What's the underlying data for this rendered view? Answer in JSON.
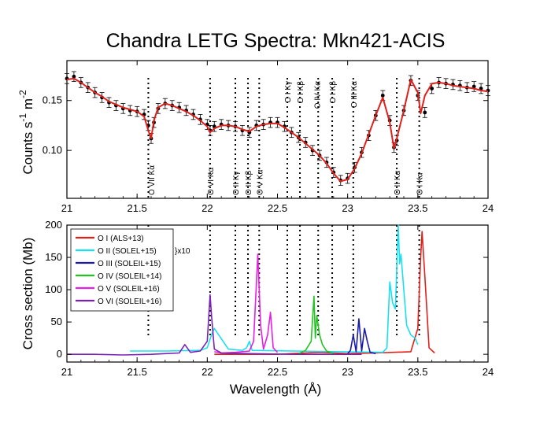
{
  "chart_data": [
    {
      "type": "scatter",
      "title": "Chandra LETG Spectra: Mkn421-ACIS",
      "xlabel": "",
      "ylabel_main": "Counts  s",
      "ylabel_exp1": "-1",
      "ylabel_mid": "  m",
      "ylabel_exp2": "-2",
      "xlim": [
        21,
        24
      ],
      "ylim": [
        0.052,
        0.19
      ],
      "xticks": [
        21,
        21.5,
        22,
        22.5,
        23,
        23.5,
        24
      ],
      "xtick_labels": [
        "21",
        "21.5",
        "22",
        "22.5",
        "23",
        "23.5",
        "24"
      ],
      "yticks": [
        0.1,
        0.15
      ],
      "ytick_labels": [
        "0.10",
        "0.15"
      ],
      "grid": false,
      "series": [
        {
          "kind": "data_with_errorbars",
          "color": "#000000",
          "x": [
            21.0,
            21.05,
            21.1,
            21.15,
            21.2,
            21.25,
            21.3,
            21.35,
            21.4,
            21.45,
            21.5,
            21.55,
            21.58,
            21.6,
            21.62,
            21.65,
            21.7,
            21.75,
            21.8,
            21.85,
            21.9,
            21.95,
            22.0,
            22.02,
            22.05,
            22.1,
            22.15,
            22.2,
            22.25,
            22.3,
            22.35,
            22.4,
            22.45,
            22.5,
            22.55,
            22.6,
            22.65,
            22.7,
            22.75,
            22.8,
            22.85,
            22.9,
            22.95,
            23.0,
            23.05,
            23.1,
            23.15,
            23.2,
            23.25,
            23.3,
            23.33,
            23.35,
            23.4,
            23.45,
            23.5,
            23.55,
            23.6,
            23.65,
            23.7,
            23.75,
            23.8,
            23.85,
            23.9,
            23.95,
            24.0
          ],
          "y": [
            0.172,
            0.174,
            0.168,
            0.163,
            0.158,
            0.153,
            0.148,
            0.145,
            0.142,
            0.14,
            0.139,
            0.136,
            0.125,
            0.112,
            0.128,
            0.142,
            0.147,
            0.145,
            0.143,
            0.14,
            0.136,
            0.131,
            0.126,
            0.12,
            0.124,
            0.126,
            0.125,
            0.124,
            0.12,
            0.118,
            0.125,
            0.126,
            0.128,
            0.128,
            0.124,
            0.118,
            0.113,
            0.108,
            0.1,
            0.095,
            0.088,
            0.078,
            0.07,
            0.072,
            0.083,
            0.098,
            0.115,
            0.135,
            0.155,
            0.13,
            0.103,
            0.11,
            0.14,
            0.17,
            0.155,
            0.138,
            0.162,
            0.168,
            0.167,
            0.166,
            0.165,
            0.163,
            0.164,
            0.162,
            0.16
          ],
          "yerr": 0.005
        },
        {
          "kind": "model",
          "color": "#e0201b",
          "x": [
            21.0,
            21.05,
            21.1,
            21.15,
            21.2,
            21.25,
            21.3,
            21.35,
            21.4,
            21.45,
            21.5,
            21.55,
            21.58,
            21.6,
            21.62,
            21.65,
            21.7,
            21.75,
            21.8,
            21.85,
            21.9,
            21.95,
            22.0,
            22.02,
            22.05,
            22.1,
            22.15,
            22.2,
            22.25,
            22.3,
            22.35,
            22.4,
            22.45,
            22.5,
            22.55,
            22.6,
            22.65,
            22.7,
            22.75,
            22.8,
            22.85,
            22.9,
            22.95,
            23.0,
            23.05,
            23.1,
            23.15,
            23.2,
            23.25,
            23.3,
            23.33,
            23.35,
            23.4,
            23.45,
            23.5,
            23.52,
            23.55,
            23.6,
            23.65,
            23.7,
            23.75,
            23.8,
            23.85,
            23.9,
            23.95,
            24.0
          ],
          "y": [
            0.171,
            0.172,
            0.168,
            0.163,
            0.158,
            0.154,
            0.149,
            0.146,
            0.143,
            0.141,
            0.139,
            0.134,
            0.12,
            0.112,
            0.13,
            0.143,
            0.147,
            0.145,
            0.142,
            0.139,
            0.135,
            0.13,
            0.124,
            0.118,
            0.122,
            0.125,
            0.125,
            0.124,
            0.121,
            0.119,
            0.124,
            0.126,
            0.127,
            0.127,
            0.123,
            0.118,
            0.113,
            0.107,
            0.101,
            0.095,
            0.087,
            0.077,
            0.069,
            0.071,
            0.082,
            0.097,
            0.116,
            0.135,
            0.153,
            0.128,
            0.102,
            0.112,
            0.14,
            0.171,
            0.158,
            0.137,
            0.155,
            0.167,
            0.168,
            0.167,
            0.165,
            0.164,
            0.163,
            0.162,
            0.16,
            0.159
          ]
        }
      ],
      "annotations": [
        {
          "text": "O VII Kα",
          "x": 21.6,
          "pos": "below"
        },
        {
          "text": "O VI Kα",
          "x": 22.02,
          "pos": "below"
        },
        {
          "text": "O II Kγ",
          "x": 22.2,
          "pos": "below"
        },
        {
          "text": "O II Kβ",
          "x": 22.29,
          "pos": "below"
        },
        {
          "text": "O V Kα",
          "x": 22.37,
          "pos": "below"
        },
        {
          "text": "O I Kγ",
          "x": 22.57,
          "pos": "above"
        },
        {
          "text": "O I Kβ",
          "x": 22.66,
          "pos": "above"
        },
        {
          "text": "O IV Kα",
          "x": 22.78,
          "pos": "above"
        },
        {
          "text": "O I Kβ",
          "x": 22.89,
          "pos": "above"
        },
        {
          "text": "O III Kα",
          "x": 23.04,
          "pos": "above"
        },
        {
          "text": "O II Kα",
          "x": 23.35,
          "pos": "below"
        },
        {
          "text": "O I Kα",
          "x": 23.51,
          "pos": "below"
        }
      ]
    },
    {
      "type": "line",
      "xlabel": "Wavelength (Å)",
      "ylabel": "Cross section (Mb)",
      "xlim": [
        21,
        24
      ],
      "ylim": [
        -12,
        200
      ],
      "xticks": [
        21,
        21.5,
        22,
        22.5,
        23,
        23.5,
        24
      ],
      "xtick_labels": [
        "21",
        "21.5",
        "22",
        "22.5",
        "23",
        "23.5",
        "24"
      ],
      "yticks": [
        0,
        50,
        100,
        150,
        200
      ],
      "ytick_labels": [
        "0",
        "50",
        "100",
        "150",
        "200"
      ],
      "grid": false,
      "legend_position": "top-left",
      "scale_note": "}x10",
      "series": [
        {
          "name": "O I (ALS+13)",
          "color": "#e0201b",
          "x": [
            22.05,
            22.5,
            22.6,
            22.8,
            22.9,
            23.0,
            23.2,
            23.45,
            23.5,
            23.52,
            23.53,
            23.55,
            23.58,
            23.62
          ],
          "y": [
            0,
            0,
            1,
            3,
            2,
            1,
            2,
            4,
            40,
            150,
            190,
            120,
            10,
            2
          ]
        },
        {
          "name": "O II (SOLEL+15)",
          "color": "#19e0f0",
          "x": [
            21.45,
            21.7,
            21.95,
            22.0,
            22.03,
            22.05,
            22.15,
            22.25,
            22.28,
            22.3,
            22.32,
            23.25,
            23.28,
            23.3,
            23.32,
            23.34,
            23.36,
            23.37,
            23.38,
            23.4,
            23.42,
            23.45,
            23.48,
            23.5
          ],
          "y": [
            5,
            5,
            6,
            10,
            30,
            40,
            8,
            6,
            10,
            20,
            6,
            3,
            10,
            112,
            80,
            70,
            200,
            140,
            155,
            100,
            45,
            30,
            25,
            15
          ]
        },
        {
          "name": "O III (SOLEIL+15)",
          "color": "#1a1aa8",
          "x": [
            23.0,
            23.02,
            23.04,
            23.06,
            23.08,
            23.1,
            23.12,
            23.14,
            23.16,
            23.2
          ],
          "y": [
            1,
            6,
            30,
            4,
            55,
            5,
            40,
            20,
            3,
            1
          ]
        },
        {
          "name": "O IV (SOLEIL+14)",
          "color": "#22c422",
          "x": [
            22.65,
            22.7,
            22.74,
            22.76,
            22.77,
            22.78,
            22.8,
            22.82,
            22.85,
            22.9
          ],
          "y": [
            1,
            6,
            20,
            90,
            25,
            60,
            30,
            15,
            5,
            1
          ]
        },
        {
          "name": "O V (SOLEIL+16)",
          "color": "#e61ee6",
          "x": [
            22.05,
            22.1,
            22.2,
            22.3,
            22.33,
            22.36,
            22.38,
            22.4,
            22.43,
            22.45,
            22.47,
            22.5
          ],
          "y": [
            4,
            2,
            3,
            5,
            20,
            155,
            45,
            8,
            30,
            65,
            10,
            3
          ]
        },
        {
          "name": "O VI (SOLEIL+16)",
          "color": "#7a22b8",
          "x": [
            21.0,
            21.2,
            21.4,
            21.6,
            21.7,
            21.8,
            21.84,
            21.88,
            21.95,
            22.0,
            22.02,
            22.03,
            22.05,
            22.1,
            22.3,
            22.6,
            22.9,
            23.1
          ],
          "y": [
            0,
            0,
            -1,
            0,
            1,
            2,
            15,
            3,
            5,
            20,
            92,
            60,
            8,
            2,
            1,
            0,
            0,
            0
          ]
        }
      ],
      "marker_lines_x": [
        21.58,
        22.02,
        22.2,
        22.29,
        22.37,
        22.57,
        22.66,
        22.79,
        22.89,
        23.04,
        23.35,
        23.51
      ]
    }
  ]
}
